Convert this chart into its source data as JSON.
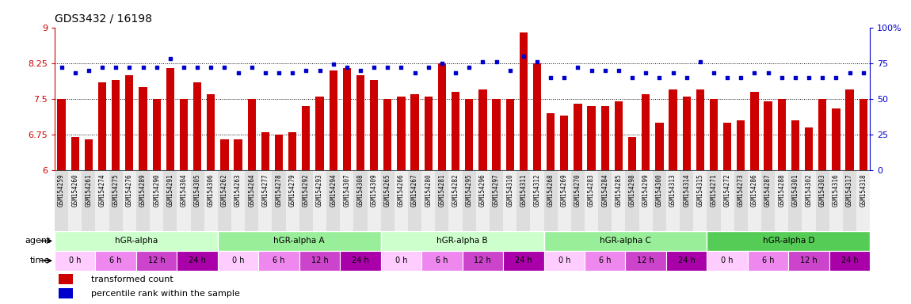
{
  "title": "GDS3432 / 16198",
  "gsm_labels": [
    "GSM154259",
    "GSM154260",
    "GSM154261",
    "GSM154274",
    "GSM154275",
    "GSM154276",
    "GSM154289",
    "GSM154290",
    "GSM154291",
    "GSM154304",
    "GSM154305",
    "GSM154306",
    "GSM154262",
    "GSM154263",
    "GSM154264",
    "GSM154277",
    "GSM154278",
    "GSM154279",
    "GSM154292",
    "GSM154293",
    "GSM154294",
    "GSM154307",
    "GSM154308",
    "GSM154309",
    "GSM154265",
    "GSM154266",
    "GSM154267",
    "GSM154280",
    "GSM154281",
    "GSM154282",
    "GSM154295",
    "GSM154296",
    "GSM154297",
    "GSM154310",
    "GSM154311",
    "GSM154312",
    "GSM154268",
    "GSM154269",
    "GSM154270",
    "GSM154283",
    "GSM154284",
    "GSM154285",
    "GSM154298",
    "GSM154299",
    "GSM154300",
    "GSM154313",
    "GSM154314",
    "GSM154315",
    "GSM154271",
    "GSM154272",
    "GSM154273",
    "GSM154286",
    "GSM154287",
    "GSM154288",
    "GSM154301",
    "GSM154302",
    "GSM154303",
    "GSM154316",
    "GSM154317",
    "GSM154318"
  ],
  "bar_values": [
    7.5,
    6.7,
    6.65,
    7.85,
    7.9,
    8.0,
    7.75,
    7.5,
    8.15,
    7.5,
    7.85,
    7.6,
    6.65,
    6.65,
    7.5,
    6.8,
    6.75,
    6.8,
    7.35,
    7.55,
    8.1,
    8.15,
    8.0,
    7.9,
    7.5,
    7.55,
    7.6,
    7.55,
    8.25,
    7.65,
    7.5,
    7.7,
    7.5,
    7.5,
    8.9,
    8.25,
    7.2,
    7.15,
    7.4,
    7.35,
    7.35,
    7.45,
    6.7,
    7.6,
    7.0,
    7.7,
    7.55,
    7.7,
    7.5,
    7.0,
    7.05,
    7.65,
    7.45,
    7.5,
    7.05,
    6.9,
    7.5,
    7.3,
    7.7,
    7.5
  ],
  "percentile_values": [
    72,
    68,
    70,
    72,
    72,
    72,
    72,
    72,
    78,
    72,
    72,
    72,
    72,
    68,
    72,
    68,
    68,
    68,
    70,
    70,
    74,
    72,
    70,
    72,
    72,
    72,
    68,
    72,
    75,
    68,
    72,
    76,
    76,
    70,
    80,
    76,
    65,
    65,
    72,
    70,
    70,
    70,
    65,
    68,
    65,
    68,
    65,
    76,
    68,
    65,
    65,
    68,
    68,
    65,
    65,
    65,
    65,
    65,
    68,
    68
  ],
  "ylim_left": [
    6,
    9
  ],
  "ylim_right": [
    0,
    100
  ],
  "yticks_left": [
    6,
    6.75,
    7.5,
    8.25,
    9
  ],
  "yticks_right": [
    0,
    25,
    50,
    75,
    100
  ],
  "ytick_labels_left": [
    "6",
    "6.75",
    "7.5",
    "8.25",
    "9"
  ],
  "ytick_labels_right": [
    "0",
    "25",
    "50",
    "75",
    "100%"
  ],
  "hline_values": [
    6.75,
    7.5,
    8.25
  ],
  "agent_groups": [
    {
      "label": "hGR-alpha",
      "start": 0,
      "end": 12,
      "color": "#ccffcc"
    },
    {
      "label": "hGR-alpha A",
      "start": 12,
      "end": 24,
      "color": "#99ee99"
    },
    {
      "label": "hGR-alpha B",
      "start": 24,
      "end": 36,
      "color": "#ccffcc"
    },
    {
      "label": "hGR-alpha C",
      "start": 36,
      "end": 48,
      "color": "#99ee99"
    },
    {
      "label": "hGR-alpha D",
      "start": 48,
      "end": 60,
      "color": "#55cc55"
    }
  ],
  "time_segments": [
    {
      "label": "0 h",
      "color": "#ffccff"
    },
    {
      "label": "6 h",
      "color": "#ee88ee"
    },
    {
      "label": "12 h",
      "color": "#cc44cc"
    },
    {
      "label": "24 h",
      "color": "#aa00aa"
    },
    {
      "label": "0 h",
      "color": "#ffccff"
    },
    {
      "label": "6 h",
      "color": "#ee88ee"
    },
    {
      "label": "12 h",
      "color": "#cc44cc"
    },
    {
      "label": "24 h",
      "color": "#aa00aa"
    },
    {
      "label": "0 h",
      "color": "#ffccff"
    },
    {
      "label": "6 h",
      "color": "#ee88ee"
    },
    {
      "label": "12 h",
      "color": "#cc44cc"
    },
    {
      "label": "24 h",
      "color": "#aa00aa"
    },
    {
      "label": "0 h",
      "color": "#ffccff"
    },
    {
      "label": "6 h",
      "color": "#ee88ee"
    },
    {
      "label": "12 h",
      "color": "#cc44cc"
    },
    {
      "label": "24 h",
      "color": "#aa00aa"
    },
    {
      "label": "0 h",
      "color": "#ffccff"
    },
    {
      "label": "6 h",
      "color": "#ee88ee"
    },
    {
      "label": "12 h",
      "color": "#cc44cc"
    },
    {
      "label": "24 h",
      "color": "#aa00aa"
    }
  ],
  "bar_color": "#cc0000",
  "dot_color": "#0000cc",
  "left_axis_color": "#cc0000",
  "right_axis_color": "#0000cc",
  "title_fontsize": 10,
  "gsm_label_fontsize": 5.5,
  "bars_per_time": 3
}
